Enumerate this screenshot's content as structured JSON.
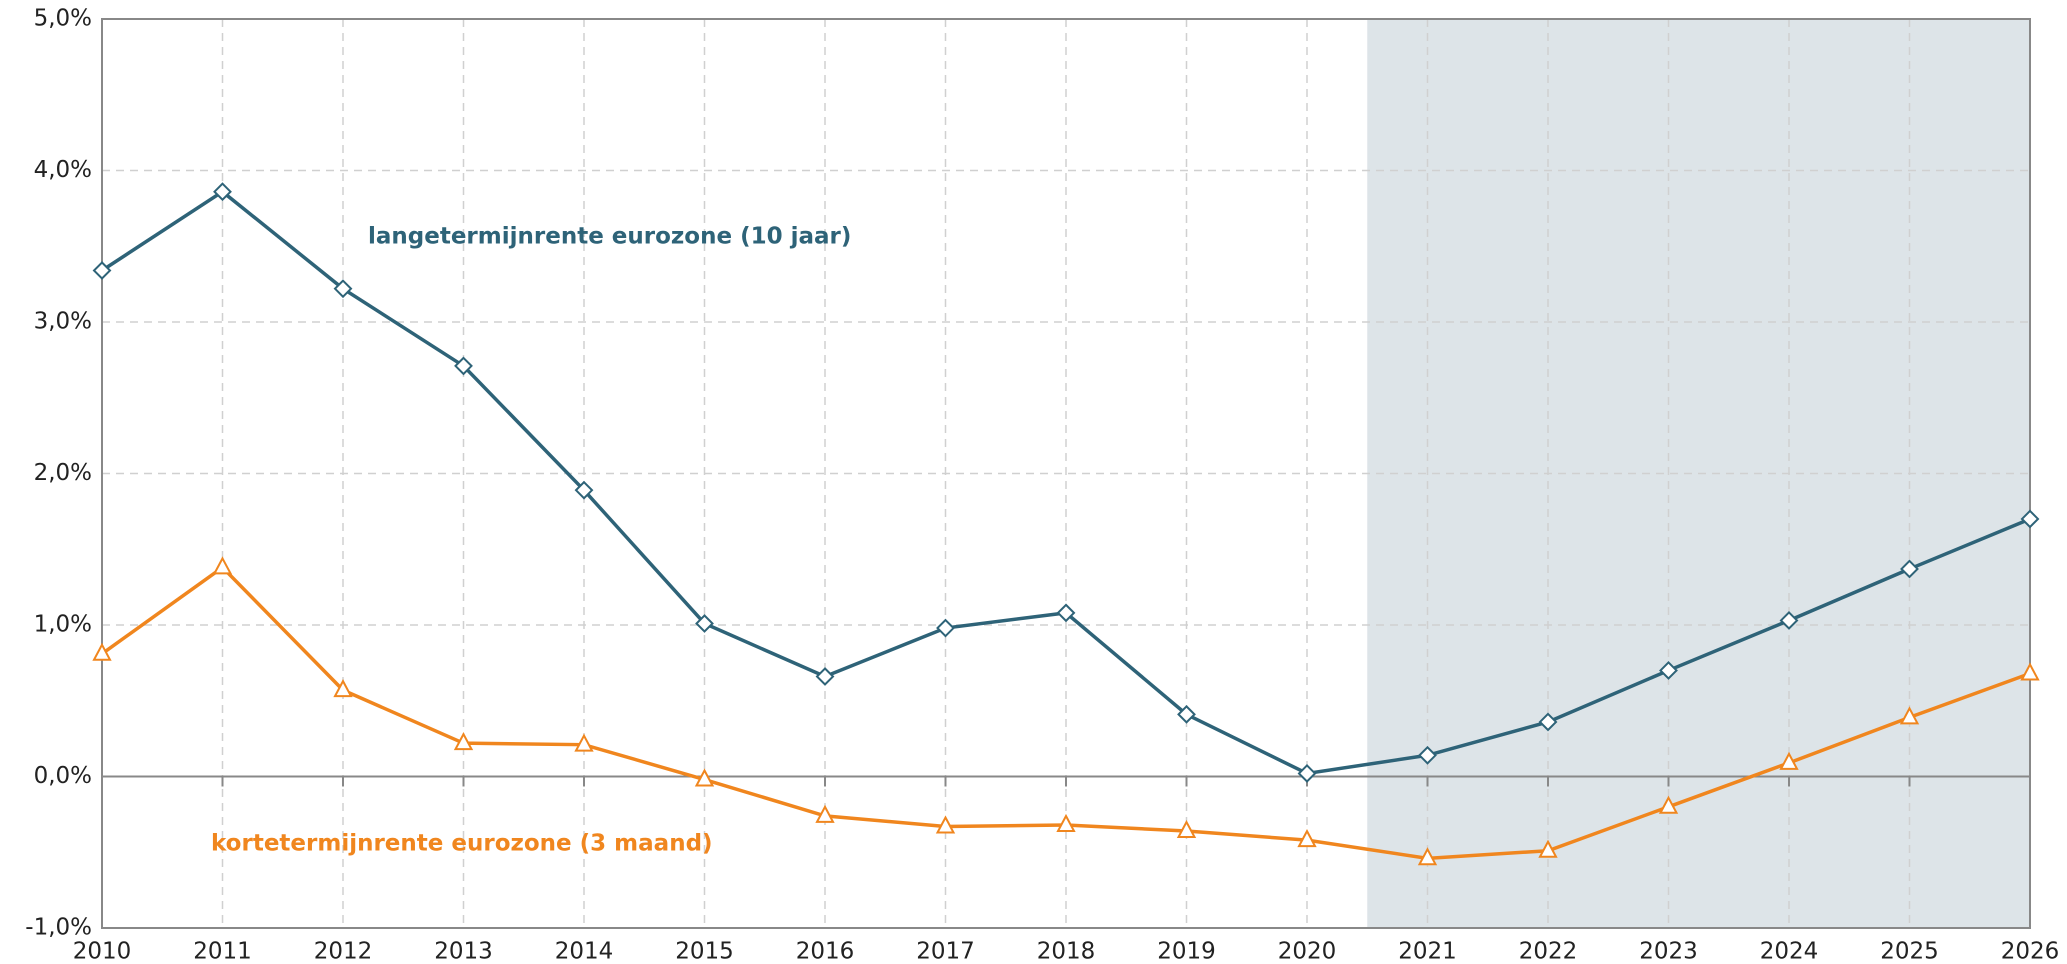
{
  "chart_data": {
    "type": "line",
    "x": [
      2010,
      2011,
      2012,
      2013,
      2014,
      2015,
      2016,
      2017,
      2018,
      2019,
      2020,
      2021,
      2022,
      2023,
      2024,
      2025,
      2026
    ],
    "series": [
      {
        "name": "langetermijnrente eurozone (10 jaar)",
        "color": "#2e6378",
        "marker": "diamond",
        "values": [
          3.34,
          3.86,
          3.22,
          2.71,
          1.89,
          1.01,
          0.66,
          0.98,
          1.08,
          0.41,
          0.02,
          0.14,
          0.36,
          0.7,
          1.03,
          1.37,
          1.7
        ]
      },
      {
        "name": "kortetermijnrente eurozone (3 maand)",
        "color": "#f0861e",
        "marker": "triangle",
        "values": [
          0.81,
          1.38,
          0.57,
          0.22,
          0.21,
          -0.02,
          -0.26,
          -0.33,
          -0.32,
          -0.36,
          -0.42,
          -0.54,
          -0.49,
          -0.2,
          0.09,
          0.39,
          0.68
        ]
      }
    ],
    "xlim": [
      2010,
      2026
    ],
    "xticks": [
      2010,
      2011,
      2012,
      2013,
      2014,
      2015,
      2016,
      2017,
      2018,
      2019,
      2020,
      2021,
      2022,
      2023,
      2024,
      2025,
      2026
    ],
    "ylim": [
      -1,
      5
    ],
    "yticks": [
      {
        "value": -1,
        "label": "-1,0%"
      },
      {
        "value": 0,
        "label": "0,0%"
      },
      {
        "value": 1,
        "label": "1,0%"
      },
      {
        "value": 2,
        "label": "2,0%"
      },
      {
        "value": 3,
        "label": "3,0%"
      },
      {
        "value": 4,
        "label": "4,0%"
      },
      {
        "value": 5,
        "label": "5,0%"
      }
    ],
    "grid": true,
    "forecast_from": 2020.5,
    "forecast_color": "#dde4e8"
  }
}
